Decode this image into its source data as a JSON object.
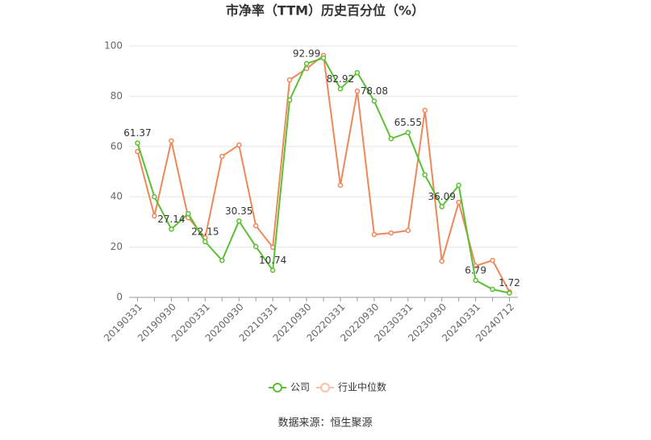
{
  "chart_data": {
    "type": "line",
    "title": "市净率（TTM）历史百分位（%）",
    "source": "数据来源：恒生聚源",
    "categories": [
      "20190331",
      null,
      "20190930",
      null,
      "20200331",
      null,
      "20200930",
      null,
      "20210331",
      null,
      "20210930",
      null,
      "20220331",
      null,
      "20220930",
      null,
      "20230331",
      null,
      "20230930",
      null,
      "20240331",
      null,
      "20240712"
    ],
    "series": [
      {
        "name": "公司",
        "color": "#5ac033",
        "values": [
          61.37,
          40,
          27.14,
          33.3,
          22.15,
          14.7,
          30.35,
          20.2,
          10.74,
          78.5,
          92.99,
          95.2,
          82.92,
          89.4,
          78.08,
          63.1,
          65.55,
          48.7,
          36.09,
          44.6,
          6.79,
          3.2,
          1.72
        ],
        "value_labels": [
          "61.37",
          null,
          "27.14",
          null,
          "22.15",
          null,
          "30.35",
          null,
          "10.74",
          null,
          "92.99",
          null,
          "82.92",
          null,
          "78.08",
          null,
          "65.55",
          null,
          "36.09",
          null,
          "6.79",
          null,
          "1.72"
        ]
      },
      {
        "name": "行业中位数",
        "color": "#f0875a",
        "values": [
          58,
          32.4,
          62.2,
          31.7,
          23.7,
          56.1,
          60.6,
          28.5,
          19.9,
          86.5,
          91,
          96.2,
          44.6,
          82,
          25,
          25.6,
          26.6,
          74.4,
          14.4,
          37.8,
          12.5,
          14.7,
          2.2
        ]
      }
    ],
    "ylim": [
      0,
      100
    ],
    "yticks": [
      0,
      20,
      40,
      60,
      80,
      100
    ],
    "grid": true,
    "legend": "bottom"
  }
}
